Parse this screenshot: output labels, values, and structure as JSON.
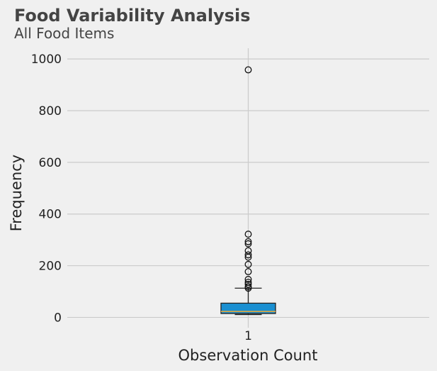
{
  "chart_data": {
    "type": "box",
    "title": "Food Variability Analysis",
    "subtitle": "All Food Items",
    "xlabel": "Observation Count",
    "ylabel": "Frequency",
    "categories": [
      "1"
    ],
    "ylim": [
      -40,
      1000
    ],
    "yticks": [
      0,
      200,
      400,
      600,
      800,
      1000
    ],
    "grid": true,
    "colors": {
      "box_fill": "#1a8fd1",
      "median": "#e8a838",
      "background": "#f0f0f0",
      "grid": "#cbcbcb"
    },
    "boxes": [
      {
        "category": "1",
        "whisker_low": 11,
        "q1": 15,
        "median": 23,
        "q3": 55,
        "whisker_high": 113,
        "outliers": [
          958,
          322,
          293,
          285,
          258,
          242,
          233,
          205,
          177,
          147,
          136,
          128,
          119,
          113
        ]
      }
    ]
  }
}
